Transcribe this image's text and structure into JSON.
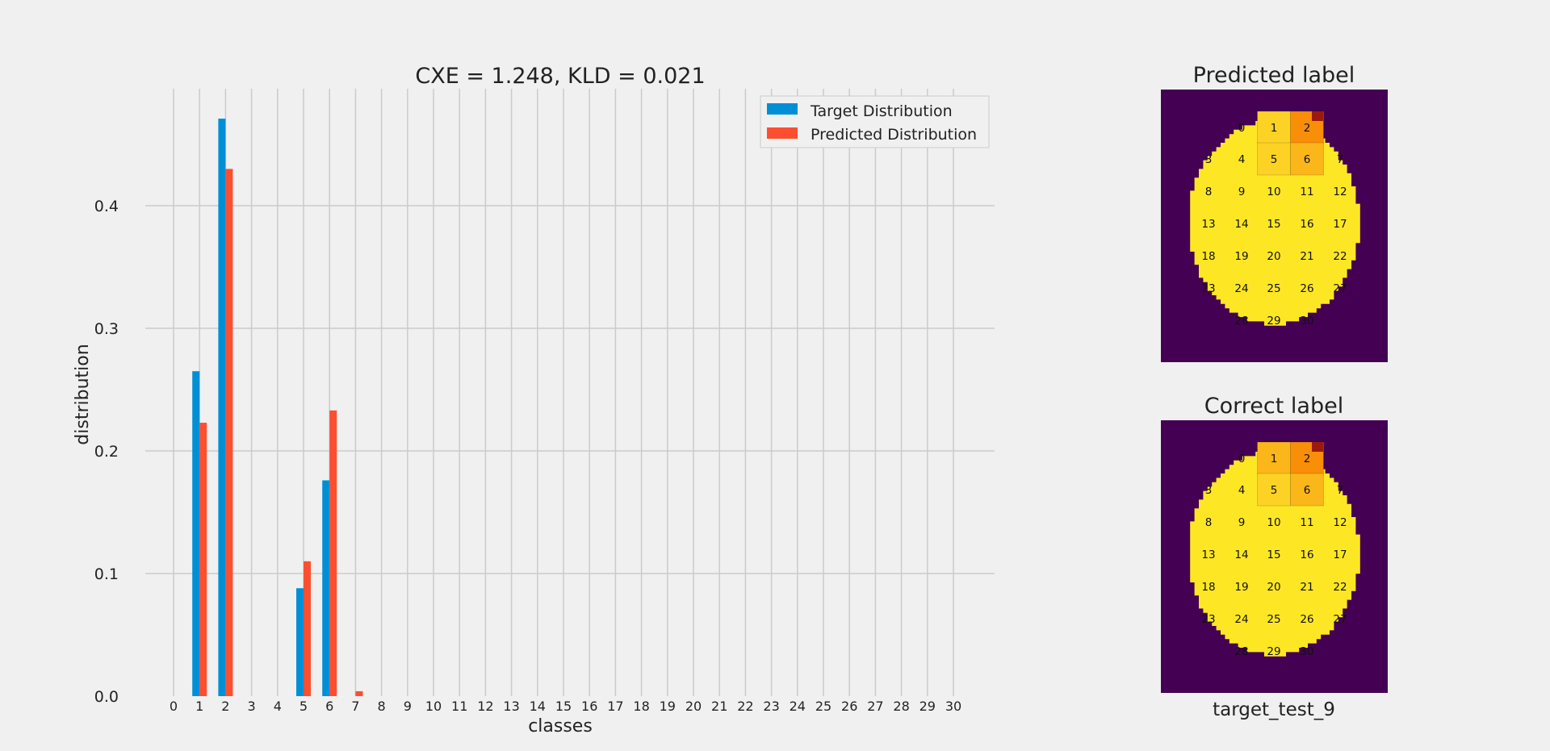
{
  "colors": {
    "background": "#f0f0f0",
    "grid": "#cbcbcb",
    "target": "#008fd5",
    "predicted": "#fc4f30",
    "wafer_bg": "#440154",
    "wafer_fill": "#fde725",
    "cell_light": "#fcd225",
    "cell_mid": "#fbb61a",
    "cell_orange": "#f98e09",
    "cell_dark": "#9a1b0b"
  },
  "chart_data": [
    {
      "type": "bar",
      "title": "CXE = 1.248, KLD = 0.021",
      "xlabel": "classes",
      "ylabel": "distribution",
      "ylim": [
        0,
        0.5
      ],
      "yticks": [
        "0.0",
        "0.1",
        "0.2",
        "0.3",
        "0.4"
      ],
      "grid": true,
      "legend_position": "top-right",
      "categories": [
        "0",
        "1",
        "2",
        "3",
        "4",
        "5",
        "6",
        "7",
        "8",
        "9",
        "10",
        "11",
        "12",
        "13",
        "14",
        "15",
        "16",
        "17",
        "18",
        "19",
        "20",
        "21",
        "22",
        "23",
        "24",
        "25",
        "26",
        "27",
        "28",
        "29",
        "30"
      ],
      "series": [
        {
          "name": "Target Distribution",
          "values": [
            0,
            0.265,
            0.471,
            0,
            0,
            0.088,
            0.176,
            0,
            0,
            0,
            0,
            0,
            0,
            0,
            0,
            0,
            0,
            0,
            0,
            0,
            0,
            0,
            0,
            0,
            0,
            0,
            0,
            0,
            0,
            0,
            0
          ]
        },
        {
          "name": "Predicted Distribution",
          "values": [
            0,
            0.223,
            0.43,
            0,
            0,
            0.11,
            0.233,
            0.004,
            0,
            0,
            0,
            0,
            0,
            0,
            0,
            0,
            0,
            0,
            0,
            0,
            0,
            0,
            0,
            0,
            0,
            0,
            0,
            0,
            0,
            0,
            0
          ]
        }
      ]
    },
    {
      "type": "heatmap",
      "title": "Predicted label",
      "xlabel": "",
      "cell_labels": [
        "0",
        "1",
        "2",
        "3",
        "4",
        "5",
        "6",
        "7",
        "8",
        "9",
        "10",
        "11",
        "12",
        "13",
        "14",
        "15",
        "16",
        "17",
        "18",
        "19",
        "20",
        "21",
        "22",
        "23",
        "24",
        "25",
        "26",
        "27",
        "28",
        "29",
        "30"
      ],
      "highlight_levels": {
        "1": "light",
        "2": "orange",
        "5": "light",
        "6": "mid"
      }
    },
    {
      "type": "heatmap",
      "title": "Correct label",
      "xlabel": "target_test_9",
      "cell_labels": [
        "0",
        "1",
        "2",
        "3",
        "4",
        "5",
        "6",
        "7",
        "8",
        "9",
        "10",
        "11",
        "12",
        "13",
        "14",
        "15",
        "16",
        "17",
        "18",
        "19",
        "20",
        "21",
        "22",
        "23",
        "24",
        "25",
        "26",
        "27",
        "28",
        "29",
        "30"
      ],
      "highlight_levels": {
        "1": "mid",
        "2": "orange",
        "5": "light",
        "6": "mid"
      }
    }
  ]
}
